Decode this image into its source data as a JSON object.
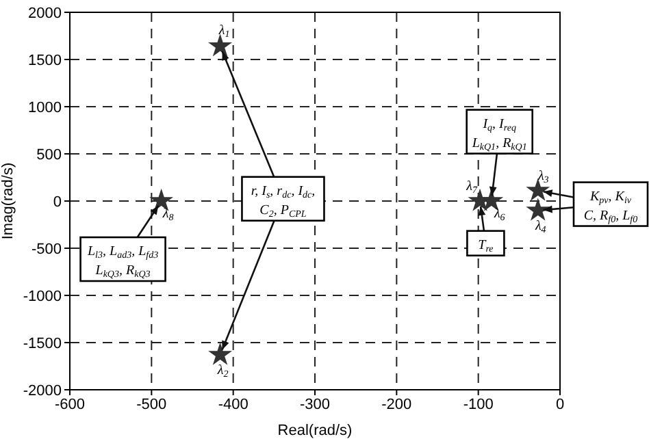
{
  "chart_data": {
    "type": "scatter",
    "xlabel": "Real(rad/s)",
    "ylabel": "Imag(rad/s)",
    "series": [
      {
        "color": "#333333",
        "x": [
          -416,
          -416,
          -488,
          -98,
          -84,
          -27,
          -27
        ],
        "values": [
          1640,
          -1630,
          0,
          0,
          0,
          110,
          -100
        ]
      }
    ],
    "xlim": [
      -600,
      0
    ],
    "xticks": [
      -600,
      -500,
      -400,
      -300,
      -200,
      -100,
      0
    ],
    "ylim": [
      -2000,
      2000
    ],
    "yticks": [
      -2000,
      -1500,
      -1000,
      -500,
      0,
      500,
      1000,
      1500,
      2000
    ],
    "grid": true,
    "marker": "star",
    "annotations": [
      {
        "text": "λ$_{1}$",
        "x": -416,
        "y": 1640
      },
      {
        "text": "λ$_{2}$",
        "x": -416,
        "y": -1630
      },
      {
        "text": "λ$_{8}$",
        "x": -488,
        "y": 0
      },
      {
        "text": "λ$_{7}$",
        "x": -98,
        "y": 0
      },
      {
        "text": "λ$_{6}$",
        "x": -84,
        "y": 0
      },
      {
        "text": "λ$_{3}$",
        "x": -27,
        "y": 110
      },
      {
        "text": "λ$_{4}$",
        "x": -27,
        "y": -100
      },
      {
        "text": "L$_{l3}$, L$_{ad3}$, L$_{fd3}$",
        "x": -488,
        "y": 0
      },
      "L$_{kQ3}$, R$_{kQ3}$",
      {
        "text": "r, I$_{s}$, r$_{dc}$, I$_{dc}$,",
        "x": -416,
        "y": 1640
      },
      {
        "text": "C$_{2}$, P$_{CPL}$",
        "x": -416,
        "y": -1630
      },
      "I$_{q}$, I$_{req}$",
      {
        "text": "L$_{kQ1}$, R$_{kQ1}$",
        "x": -84,
        "y": 0
      },
      {
        "text": "T$_{re}$",
        "x": -98,
        "y": 0
      },
      {
        "text": "K$_{pv}$, K$_{iv}$",
        "x": -27,
        "y": 110
      },
      {
        "text": "C, R$_{f0}$, L$_{f0}$",
        "x": -27,
        "y": -100
      }
    ]
  }
}
